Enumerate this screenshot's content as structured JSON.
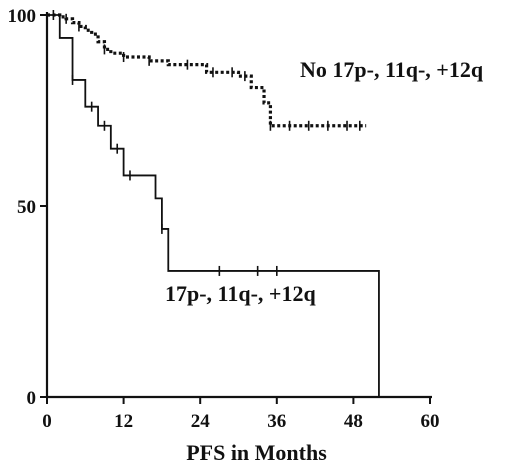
{
  "chart_data": {
    "type": "line",
    "title": "",
    "xlabel": "PFS in Months",
    "ylabel": "",
    "xlim": [
      0,
      60
    ],
    "ylim": [
      0,
      100
    ],
    "xticks": [
      "0",
      "12",
      "24",
      "36",
      "48",
      "60"
    ],
    "yticks": [
      "0",
      "50",
      "100"
    ],
    "grid": false,
    "legend": "none",
    "series": [
      {
        "name": "No 17p-, 11q-, +12q",
        "style": "dotted",
        "color": "#111111",
        "step_x": [
          0,
          1,
          2,
          3,
          4,
          5,
          6,
          7,
          8,
          9,
          10,
          11,
          12,
          14,
          16,
          18,
          19,
          20,
          22,
          24,
          25,
          28,
          30,
          32,
          33,
          34,
          35,
          36,
          40,
          44,
          48,
          50
        ],
        "step_y": [
          100,
          100,
          99.5,
          99,
          98,
          97,
          96,
          95,
          93,
          91,
          90,
          90,
          89,
          89,
          88,
          88,
          87,
          87,
          87,
          87,
          85,
          85,
          84,
          81,
          81,
          77,
          71,
          71,
          71,
          71,
          71,
          71
        ],
        "censor_x": [
          1,
          3,
          5,
          9,
          12,
          16,
          22,
          26,
          29,
          31,
          35,
          38,
          41,
          44,
          47,
          49
        ]
      },
      {
        "name": "17p-, 11q-, +12q",
        "style": "solid",
        "color": "#111111",
        "step_x": [
          0,
          2,
          3,
          4,
          6,
          8,
          10,
          12,
          17,
          18,
          19,
          52
        ],
        "step_y": [
          100,
          94,
          94,
          83,
          76,
          71,
          65,
          58,
          52,
          44,
          33,
          0
        ],
        "censor_x": [
          4,
          7,
          9,
          11,
          13,
          18,
          27,
          33,
          36
        ]
      }
    ]
  }
}
